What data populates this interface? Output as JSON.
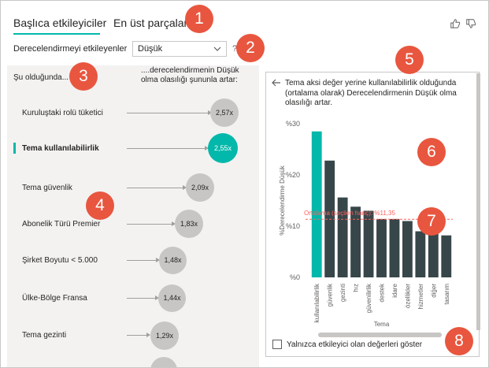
{
  "tabs": [
    {
      "label": "Başlıca etkileyiciler"
    },
    {
      "label": "En üst parçalar"
    }
  ],
  "badges": [
    "1",
    "2",
    "3",
    "4",
    "5",
    "6",
    "7",
    "8"
  ],
  "feedback": {
    "like_icon": "thumbs-up-icon",
    "dislike_icon": "thumbs-down-icon"
  },
  "filter": {
    "label": "Derecelendirmeyi etkileyenler",
    "selected": "Düşük",
    "help": "?"
  },
  "influencers": {
    "left_header": "Şu olduğunda...",
    "right_header": "....derecelendirmenin Düşük olma olasılığı şununla artar:",
    "items": [
      {
        "label": "Kuruluştaki rolü tüketici",
        "value": "2,57x",
        "selected": false
      },
      {
        "label": "Tema kullanılabilirlik",
        "value": "2,55x",
        "selected": true
      },
      {
        "label": "Tema güvenlik",
        "value": "2,09x",
        "selected": false
      },
      {
        "label": "Abonelik Türü Premier",
        "value": "1,83x",
        "selected": false
      },
      {
        "label": "Şirket Boyutu < 5.000",
        "value": "1,48x",
        "selected": false
      },
      {
        "label": "Ülke-Bölge Fransa",
        "value": "1,44x",
        "selected": false
      },
      {
        "label": "Tema gezinti",
        "value": "1,29x",
        "selected": false
      }
    ]
  },
  "detail": {
    "title": "Tema aksi değer yerine kullanılabilirlik olduğunda (ortalama olarak) Derecelendirmenin Düşük olma olasılığı artar.",
    "checkbox_label": "Yalnızca etkileyici olan değerleri göster"
  },
  "colors": {
    "accent": "#01b8aa",
    "bar": "#374649",
    "average": "#fd625e",
    "badge": "#e8563f"
  },
  "chart_data": {
    "type": "bar",
    "categories": [
      "kullanılabilirlik",
      "güvenlik",
      "gezinti",
      "hız",
      "güvenilirlik",
      "destek",
      "idare",
      "özellikler",
      "hizmetler",
      "diğer",
      "tasarım"
    ],
    "values": [
      28.5,
      22.8,
      15.6,
      13.8,
      13.0,
      11.4,
      11.4,
      11.0,
      9.0,
      8.6,
      8.2
    ],
    "highlight_index": 0,
    "ylabel": "%Derecelendirme Düşük",
    "xlabel": "Tema",
    "ylim": [
      0,
      30
    ],
    "yticks": [
      "%0",
      "%10",
      "%20",
      "%30"
    ],
    "average": {
      "value": 11.35,
      "label": "Ortalama (seçilen hariç): %11,35"
    },
    "grid": false
  }
}
